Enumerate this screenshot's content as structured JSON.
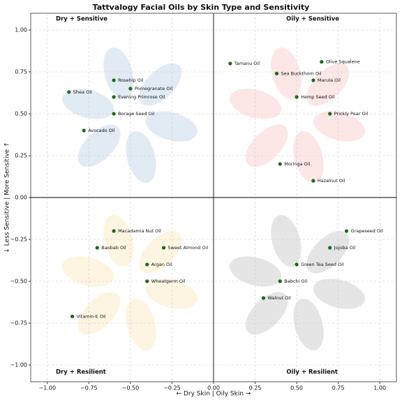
{
  "chart_data": {
    "type": "scatter",
    "title": "Tattvalogy Facial Oils by Skin Type and Sensitivity",
    "xlabel": "← Dry Skin    |    Oily Skin →",
    "ylabel": "↓ Less Sensitive    |    More Sensitive ↑",
    "quadrant_labels": [
      "Dry + Sensitive",
      "Oily + Sensitive",
      "Dry + Resilient",
      "Oily + Resilient"
    ],
    "point_labels": [
      "Rosehip Oil",
      "Pomegranate Oil",
      "Shea Oil",
      "Evening Primrose Oil",
      "Borage Seed Oil",
      "Avocado Oil",
      "Tamanu Oil",
      "Olive Squalene",
      "Sea Buckthorn Oil",
      "Marula Oil",
      "Hemp Seed Oil",
      "Prickly Pear Oil",
      "Moringa Oil",
      "Hazelnut Oil",
      "Macadamia Nut Oil",
      "Baobab Oil",
      "Sweet Almond Oil",
      "Argan Oil",
      "Wheatgerm Oil",
      "Vitamin-E Oil",
      "Grapeseed Oil",
      "Jojoba Oil",
      "Green Tea Seed Oil",
      "Babchi Oil",
      "Walnut Oil"
    ],
    "x": [
      -0.6,
      -0.5,
      -0.87,
      -0.6,
      -0.6,
      -0.78,
      0.1,
      0.65,
      0.38,
      0.6,
      0.5,
      0.7,
      0.4,
      0.6,
      -0.6,
      -0.7,
      -0.3,
      -0.4,
      -0.4,
      -0.85,
      0.8,
      0.7,
      0.5,
      0.4,
      0.3
    ],
    "values": [
      0.7,
      0.65,
      0.63,
      0.6,
      0.5,
      0.4,
      0.8,
      0.81,
      0.74,
      0.7,
      0.6,
      0.5,
      0.2,
      0.1,
      -0.2,
      -0.3,
      -0.3,
      -0.4,
      -0.5,
      -0.71,
      -0.2,
      -0.3,
      -0.4,
      -0.5,
      -0.6
    ],
    "color": "#1a6b1a",
    "xlim": [
      -1.1,
      1.1
    ],
    "ylim": [
      -1.1,
      1.1
    ],
    "xticks": [
      {
        "value": -1,
        "label": "−1.00"
      },
      {
        "value": -0.75,
        "label": "−0.75"
      },
      {
        "value": -0.5,
        "label": "−0.50"
      },
      {
        "value": -0.25,
        "label": "−0.25"
      },
      {
        "value": 0,
        "label": "0.00"
      },
      {
        "value": 0.25,
        "label": "0.25"
      },
      {
        "value": 0.5,
        "label": "0.50"
      },
      {
        "value": 0.75,
        "label": "0.75"
      },
      {
        "value": 1,
        "label": "1.00"
      }
    ],
    "yticks": [
      {
        "value": -1,
        "label": "−1.00"
      },
      {
        "value": -0.75,
        "label": "−0.75"
      },
      {
        "value": -0.5,
        "label": "−0.50"
      },
      {
        "value": -0.25,
        "label": "−0.25"
      },
      {
        "value": 0,
        "label": "0.00"
      },
      {
        "value": 0.25,
        "label": "0.25"
      },
      {
        "value": 0.5,
        "label": "0.50"
      },
      {
        "value": 0.75,
        "label": "0.75"
      },
      {
        "value": 1,
        "label": "1.00"
      }
    ],
    "grid": true
  }
}
